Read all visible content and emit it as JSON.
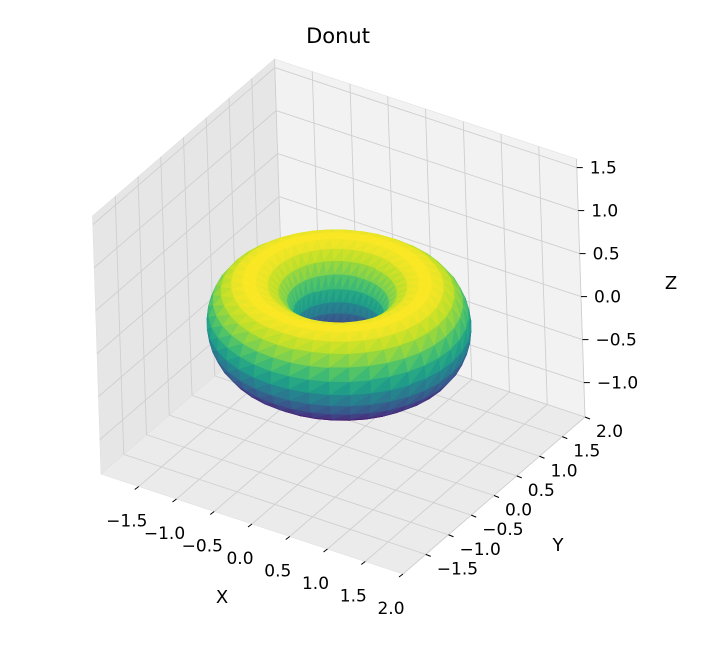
{
  "chart_data": {
    "type": "surface3d",
    "title": "Donut",
    "xlabel": "X",
    "ylabel": "Y",
    "zlabel": "Z",
    "xlim": [
      -2.0,
      2.0
    ],
    "ylim": [
      -2.0,
      2.0
    ],
    "zlim": [
      -1.4,
      1.6
    ],
    "x_ticks": [
      "−1.5",
      "−1.0",
      "−0.5",
      "0.0",
      "0.5",
      "1.0",
      "1.5",
      "2.0"
    ],
    "y_ticks": [
      "−1.5",
      "−1.0",
      "−0.5",
      "0.0",
      "0.5",
      "1.0",
      "1.5",
      "2.0"
    ],
    "z_ticks": [
      "−1.0",
      "−0.5",
      "0.0",
      "0.5",
      "1.0",
      "1.5"
    ],
    "x_tick_values": [
      -1.5,
      -1.0,
      -0.5,
      0.0,
      0.5,
      1.0,
      1.5,
      2.0
    ],
    "y_tick_values": [
      -1.5,
      -1.0,
      -0.5,
      0.0,
      0.5,
      1.0,
      1.5,
      2.0
    ],
    "z_tick_values": [
      -1.0,
      -0.5,
      0.0,
      0.5,
      1.0,
      1.5
    ],
    "surface": {
      "shape": "torus",
      "major_radius": 1.0,
      "minor_radius": 0.5,
      "center": [
        0,
        0,
        0
      ],
      "colormap": "viridis",
      "color_by": "z"
    },
    "grid": true,
    "legend": "none"
  }
}
